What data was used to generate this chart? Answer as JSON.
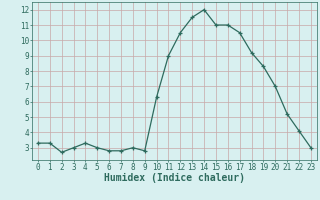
{
  "x": [
    0,
    1,
    2,
    3,
    4,
    5,
    6,
    7,
    8,
    9,
    10,
    11,
    12,
    13,
    14,
    15,
    16,
    17,
    18,
    19,
    20,
    21,
    22,
    23
  ],
  "y": [
    3.3,
    3.3,
    2.7,
    3.0,
    3.3,
    3.0,
    2.8,
    2.8,
    3.0,
    2.8,
    6.3,
    9.0,
    10.5,
    11.5,
    12.0,
    11.0,
    11.0,
    10.5,
    9.2,
    8.3,
    7.0,
    5.2,
    4.1,
    3.0
  ],
  "xlabel": "Humidex (Indice chaleur)",
  "ylim": [
    2.2,
    12.5
  ],
  "xlim": [
    -0.5,
    23.5
  ],
  "yticks": [
    3,
    4,
    5,
    6,
    7,
    8,
    9,
    10,
    11,
    12
  ],
  "xticks": [
    0,
    1,
    2,
    3,
    4,
    5,
    6,
    7,
    8,
    9,
    10,
    11,
    12,
    13,
    14,
    15,
    16,
    17,
    18,
    19,
    20,
    21,
    22,
    23
  ],
  "line_color": "#2e6b5e",
  "marker": "+",
  "marker_size": 3,
  "bg_color": "#d8f0f0",
  "grid_color": "#c8a8a8",
  "tick_fontsize": 5.5,
  "label_fontsize": 7.0
}
